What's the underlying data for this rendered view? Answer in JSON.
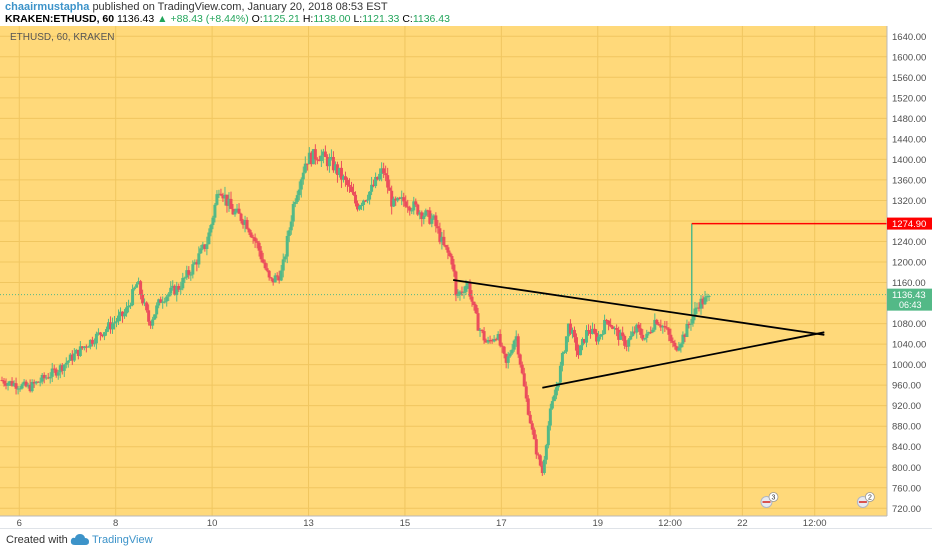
{
  "header": {
    "author": "chaairmustapha",
    "published": "published on TradingView.com, January 20, 2018 08:53 EST",
    "symbol": "KRAKEN:ETHUSD, 60",
    "last": "1136.43",
    "change_arrow": "▲",
    "change": "+88.43 (+8.44%)",
    "o_label": "O:",
    "o": "1125.21",
    "h_label": "H:",
    "h": "1138.00",
    "l_label": "L:",
    "l": "1121.33",
    "c_label": "C:",
    "c": "1136.43"
  },
  "footer": {
    "created": "Created with",
    "brand": "TradingView"
  },
  "colors": {
    "background": "#ffd97a",
    "up": "#53b987",
    "down": "#eb4d5c",
    "level": "#ff0000",
    "axis_text": "#4f4f4f",
    "price_tag": "#53b987",
    "link": "#3c93c9"
  },
  "chart_data": {
    "type": "candlestick",
    "title": "ETHUSD, 60, KRAKEN",
    "y_ticks": [
      720,
      760,
      800,
      840,
      880,
      920,
      960,
      1000,
      1040,
      1080,
      1120,
      1160,
      1200,
      1240,
      1280,
      1320,
      1360,
      1400,
      1440,
      1480,
      1520,
      1560,
      1600,
      1640
    ],
    "y_tick_labels": [
      "720.00",
      "760.00",
      "800.00",
      "840.00",
      "880.00",
      "920.00",
      "960.00",
      "1000.00",
      "1040.00",
      "1080.00",
      "1120.00",
      "1160.00",
      "1200.00",
      "1240.00",
      "1280.00",
      "1320.00",
      "1360.00",
      "1400.00",
      "1440.00",
      "1480.00",
      "1520.00",
      "1560.00",
      "1600.00",
      "1640.00"
    ],
    "ylim": [
      705,
      1660
    ],
    "x_range_days": [
      5.6,
      24.0
    ],
    "x_ticks": [
      {
        "label": "6",
        "day": 6.0
      },
      {
        "label": "8",
        "day": 8.0
      },
      {
        "label": "10",
        "day": 10.0
      },
      {
        "label": "13",
        "day": 12.0
      },
      {
        "label": "15",
        "day": 14.0
      },
      {
        "label": "17",
        "day": 16.0
      },
      {
        "label": "19",
        "day": 18.0
      },
      {
        "label": "12:00",
        "day": 19.5
      },
      {
        "label": "22",
        "day": 21.0
      },
      {
        "label": "12:00",
        "day": 22.5
      }
    ],
    "price_path": [
      [
        5.6,
        970
      ],
      [
        6.2,
        955
      ],
      [
        6.8,
        990
      ],
      [
        7.4,
        1040
      ],
      [
        7.8,
        1070
      ],
      [
        8.2,
        1100
      ],
      [
        8.45,
        1160
      ],
      [
        8.7,
        1080
      ],
      [
        8.95,
        1130
      ],
      [
        9.3,
        1150
      ],
      [
        9.6,
        1190
      ],
      [
        9.9,
        1240
      ],
      [
        10.15,
        1350
      ],
      [
        10.4,
        1300
      ],
      [
        10.7,
        1280
      ],
      [
        10.95,
        1230
      ],
      [
        11.2,
        1160
      ],
      [
        11.45,
        1180
      ],
      [
        11.7,
        1320
      ],
      [
        11.95,
        1400
      ],
      [
        12.2,
        1410
      ],
      [
        12.5,
        1390
      ],
      [
        12.8,
        1350
      ],
      [
        13.0,
        1310
      ],
      [
        13.3,
        1340
      ],
      [
        13.55,
        1380
      ],
      [
        13.75,
        1310
      ],
      [
        14.0,
        1320
      ],
      [
        14.3,
        1300
      ],
      [
        14.6,
        1280
      ],
      [
        14.8,
        1230
      ],
      [
        15.0,
        1200
      ],
      [
        15.05,
        1130
      ],
      [
        15.3,
        1160
      ],
      [
        15.5,
        1080
      ],
      [
        15.7,
        1040
      ],
      [
        15.9,
        1060
      ],
      [
        16.1,
        1000
      ],
      [
        16.3,
        1060
      ],
      [
        16.5,
        940
      ],
      [
        16.7,
        840
      ],
      [
        16.85,
        790
      ],
      [
        17.0,
        900
      ],
      [
        17.2,
        980
      ],
      [
        17.4,
        1080
      ],
      [
        17.6,
        1020
      ],
      [
        17.8,
        1070
      ],
      [
        18.0,
        1050
      ],
      [
        18.2,
        1090
      ],
      [
        18.4,
        1060
      ],
      [
        18.6,
        1040
      ],
      [
        18.8,
        1070
      ],
      [
        19.0,
        1050
      ],
      [
        19.2,
        1090
      ],
      [
        19.4,
        1070
      ],
      [
        19.6,
        1030
      ],
      [
        19.8,
        1060
      ],
      [
        20.0,
        1100
      ],
      [
        20.1,
        1120
      ],
      [
        20.35,
        1130
      ]
    ],
    "triangle": {
      "upper": [
        [
          15.0,
          1165
        ],
        [
          22.7,
          1058
        ]
      ],
      "lower": [
        [
          16.85,
          955
        ],
        [
          22.7,
          1063
        ]
      ]
    },
    "level_line": {
      "label": "1274.90",
      "value": 1274.9,
      "from_day": 19.95
    },
    "spike": {
      "day": 19.95,
      "from": 1095,
      "to": 1274.9
    },
    "last_price": {
      "value": 1136.43,
      "label": "1136.43",
      "sub_label": "06:43"
    },
    "events": [
      {
        "day": 21.5,
        "count": "3"
      },
      {
        "day": 23.5,
        "count": "2"
      }
    ]
  }
}
